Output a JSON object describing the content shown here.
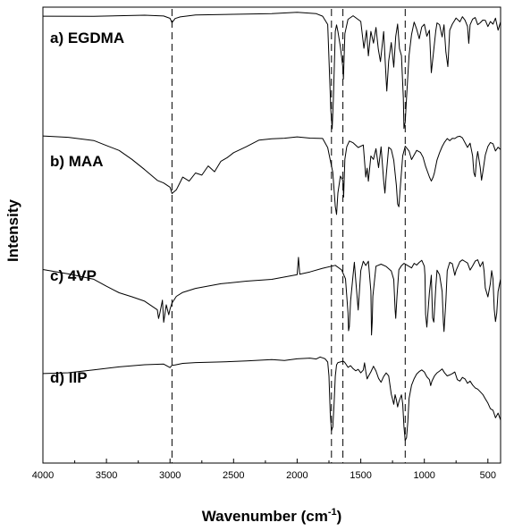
{
  "chart_data": {
    "type": "line",
    "title": "",
    "xlabel": "Wavenumber (cm",
    "xlabel_sup": "-1",
    "xlabel_close": ")",
    "ylabel": "Intensity",
    "xlim": [
      4000,
      400
    ],
    "x_reversed": true,
    "x_ticks": [
      "4000",
      "3500",
      "3000",
      "2500",
      "2000",
      "1500",
      "1000",
      "500"
    ],
    "y_ticks_shown": false,
    "grid": false,
    "legend": "none",
    "reference_lines": [
      2985,
      1730,
      1640,
      1150
    ],
    "series": [
      {
        "name": "a) EGDMA",
        "x": [
          4000,
          3600,
          3200,
          3050,
          3000,
          2985,
          2960,
          2920,
          2800,
          2500,
          2200,
          2000,
          1850,
          1800,
          1760,
          1735,
          1725,
          1715,
          1700,
          1690,
          1680,
          1660,
          1640,
          1636,
          1625,
          1600,
          1560,
          1500,
          1475,
          1455,
          1440,
          1420,
          1400,
          1380,
          1362,
          1345,
          1320,
          1300,
          1295,
          1280,
          1260,
          1240,
          1225,
          1210,
          1195,
          1180,
          1165,
          1160,
          1150,
          1140,
          1120,
          1100,
          1080,
          1060,
          1040,
          1020,
          1000,
          980,
          960,
          945,
          930,
          910,
          900,
          880,
          860,
          845,
          830,
          815,
          800,
          780,
          750,
          720,
          700,
          680,
          660,
          650,
          640,
          620,
          600,
          580,
          560,
          540,
          520,
          500,
          480,
          460,
          440,
          420,
          400
        ],
        "values": [
          0.97,
          0.975,
          0.978,
          0.975,
          0.955,
          0.92,
          0.955,
          0.965,
          0.975,
          0.982,
          0.99,
          1.0,
          0.985,
          0.97,
          0.9,
          0.2,
          0.05,
          0.3,
          0.85,
          0.9,
          0.85,
          0.72,
          0.55,
          0.45,
          0.82,
          0.94,
          0.97,
          0.92,
          0.7,
          0.85,
          0.65,
          0.85,
          0.75,
          0.88,
          0.7,
          0.6,
          0.85,
          0.45,
          0.35,
          0.6,
          0.75,
          0.55,
          0.8,
          0.9,
          0.7,
          0.65,
          0.3,
          0.05,
          0.1,
          0.3,
          0.65,
          0.82,
          0.92,
          0.86,
          0.78,
          0.88,
          0.9,
          0.8,
          0.85,
          0.5,
          0.65,
          0.85,
          0.92,
          0.9,
          0.8,
          0.9,
          0.68,
          0.55,
          0.85,
          0.9,
          0.95,
          0.92,
          0.96,
          0.93,
          0.88,
          0.75,
          0.9,
          0.95,
          0.96,
          0.9,
          0.92,
          0.94,
          0.93,
          0.88,
          0.92,
          0.9,
          0.95,
          0.85,
          0.92
        ]
      },
      {
        "name": "b) MAA",
        "x": [
          4000,
          3800,
          3600,
          3500,
          3400,
          3300,
          3200,
          3100,
          3050,
          3000,
          2985,
          2950,
          2900,
          2850,
          2800,
          2750,
          2700,
          2650,
          2600,
          2550,
          2500,
          2400,
          2300,
          2200,
          2100,
          2000,
          1900,
          1800,
          1760,
          1720,
          1700,
          1690,
          1680,
          1660,
          1640,
          1635,
          1625,
          1610,
          1590,
          1560,
          1520,
          1480,
          1460,
          1450,
          1440,
          1420,
          1400,
          1380,
          1360,
          1340,
          1320,
          1310,
          1300,
          1280,
          1260,
          1240,
          1220,
          1210,
          1200,
          1190,
          1170,
          1150,
          1120,
          1100,
          1060,
          1030,
          1010,
          990,
          960,
          945,
          930,
          920,
          900,
          880,
          860,
          840,
          820,
          800,
          780,
          760,
          740,
          720,
          700,
          660,
          640,
          620,
          610,
          600,
          590,
          580,
          560,
          550,
          540,
          520,
          500,
          480,
          460,
          440,
          420,
          400
        ],
        "values": [
          0.98,
          0.96,
          0.92,
          0.86,
          0.8,
          0.7,
          0.58,
          0.45,
          0.42,
          0.38,
          0.3,
          0.35,
          0.5,
          0.45,
          0.55,
          0.52,
          0.62,
          0.55,
          0.68,
          0.72,
          0.78,
          0.85,
          0.92,
          0.95,
          0.96,
          0.97,
          0.96,
          0.95,
          0.85,
          0.55,
          0.15,
          0.05,
          0.3,
          0.5,
          0.45,
          0.25,
          0.7,
          0.85,
          0.92,
          0.9,
          0.85,
          0.88,
          0.5,
          0.6,
          0.45,
          0.75,
          0.7,
          0.82,
          0.6,
          0.85,
          0.45,
          0.3,
          0.5,
          0.85,
          0.82,
          0.7,
          0.4,
          0.18,
          0.15,
          0.35,
          0.75,
          0.85,
          0.8,
          0.7,
          0.8,
          0.78,
          0.72,
          0.62,
          0.5,
          0.45,
          0.5,
          0.55,
          0.7,
          0.78,
          0.86,
          0.9,
          0.94,
          0.92,
          0.95,
          0.94,
          0.96,
          0.97,
          0.95,
          0.85,
          0.9,
          0.75,
          0.55,
          0.5,
          0.7,
          0.8,
          0.6,
          0.45,
          0.55,
          0.75,
          0.85,
          0.9,
          0.88,
          0.8,
          0.85,
          0.82
        ]
      },
      {
        "name": "c) 4VP",
        "x": [
          4000,
          3800,
          3600,
          3500,
          3400,
          3300,
          3200,
          3100,
          3090,
          3080,
          3060,
          3050,
          3030,
          3010,
          3000,
          2985,
          2950,
          2900,
          2800,
          2600,
          2400,
          2200,
          2000,
          1990,
          1980,
          1900,
          1800,
          1700,
          1650,
          1620,
          1600,
          1596,
          1590,
          1580,
          1560,
          1550,
          1540,
          1520,
          1500,
          1480,
          1460,
          1440,
          1420,
          1415,
          1410,
          1405,
          1380,
          1340,
          1300,
          1260,
          1240,
          1230,
          1225,
          1215,
          1200,
          1180,
          1160,
          1140,
          1100,
          1080,
          1060,
          1040,
          1020,
          1000,
          995,
          990,
          980,
          960,
          945,
          935,
          925,
          910,
          900,
          880,
          860,
          850,
          845,
          830,
          820,
          800,
          780,
          760,
          750,
          720,
          700,
          680,
          660,
          640,
          620,
          600,
          580,
          560,
          540,
          530,
          520,
          500,
          480,
          470,
          460,
          450,
          440,
          430,
          420,
          400
        ],
        "values": [
          0.8,
          0.75,
          0.7,
          0.62,
          0.55,
          0.5,
          0.45,
          0.35,
          0.25,
          0.3,
          0.45,
          0.2,
          0.4,
          0.28,
          0.35,
          0.42,
          0.5,
          0.55,
          0.6,
          0.65,
          0.68,
          0.7,
          0.75,
          0.95,
          0.75,
          0.78,
          0.82,
          0.85,
          0.8,
          0.7,
          0.3,
          0.1,
          0.15,
          0.45,
          0.75,
          0.9,
          0.7,
          0.35,
          0.8,
          0.9,
          0.85,
          0.9,
          0.55,
          0.05,
          0.2,
          0.5,
          0.85,
          0.88,
          0.85,
          0.8,
          0.7,
          0.35,
          0.25,
          0.5,
          0.8,
          0.85,
          0.88,
          0.86,
          0.82,
          0.88,
          0.86,
          0.9,
          0.92,
          0.85,
          0.75,
          0.3,
          0.15,
          0.55,
          0.75,
          0.25,
          0.2,
          0.6,
          0.8,
          0.75,
          0.55,
          0.2,
          0.1,
          0.45,
          0.8,
          0.9,
          0.88,
          0.75,
          0.8,
          0.9,
          0.92,
          0.9,
          0.88,
          0.8,
          0.85,
          0.9,
          0.92,
          0.85,
          0.9,
          0.8,
          0.6,
          0.5,
          0.65,
          0.8,
          0.7,
          0.35,
          0.2,
          0.3,
          0.55,
          0.7
        ]
      },
      {
        "name": "d) IIP",
        "x": [
          4000,
          3800,
          3600,
          3400,
          3200,
          3050,
          3000,
          2985,
          2960,
          2900,
          2800,
          2600,
          2400,
          2200,
          2100,
          2000,
          1900,
          1850,
          1820,
          1800,
          1780,
          1760,
          1750,
          1740,
          1730,
          1720,
          1710,
          1700,
          1690,
          1680,
          1660,
          1640,
          1630,
          1620,
          1600,
          1580,
          1560,
          1540,
          1520,
          1500,
          1480,
          1470,
          1460,
          1450,
          1440,
          1420,
          1400,
          1380,
          1360,
          1340,
          1320,
          1300,
          1280,
          1260,
          1250,
          1240,
          1230,
          1220,
          1210,
          1200,
          1180,
          1170,
          1160,
          1150,
          1140,
          1130,
          1120,
          1100,
          1080,
          1060,
          1040,
          1020,
          1000,
          980,
          960,
          950,
          940,
          920,
          900,
          880,
          860,
          840,
          820,
          800,
          780,
          760,
          740,
          720,
          700,
          680,
          660,
          640,
          620,
          600,
          580,
          560,
          540,
          520,
          500,
          480,
          460,
          440,
          420,
          400
        ],
        "values": [
          0.78,
          0.79,
          0.82,
          0.85,
          0.87,
          0.88,
          0.84,
          0.86,
          0.87,
          0.88,
          0.9,
          0.91,
          0.92,
          0.93,
          0.92,
          0.94,
          0.95,
          0.94,
          0.95,
          0.94,
          0.93,
          0.9,
          0.75,
          0.35,
          0.15,
          0.2,
          0.45,
          0.75,
          0.88,
          0.9,
          0.91,
          0.92,
          0.9,
          0.88,
          0.84,
          0.86,
          0.83,
          0.8,
          0.82,
          0.78,
          0.82,
          0.9,
          0.8,
          0.72,
          0.75,
          0.8,
          0.86,
          0.8,
          0.72,
          0.68,
          0.74,
          0.78,
          0.75,
          0.55,
          0.5,
          0.45,
          0.55,
          0.5,
          0.42,
          0.48,
          0.55,
          0.45,
          0.2,
          0.05,
          0.08,
          0.25,
          0.5,
          0.65,
          0.72,
          0.78,
          0.8,
          0.82,
          0.8,
          0.75,
          0.72,
          0.65,
          0.7,
          0.75,
          0.78,
          0.8,
          0.82,
          0.78,
          0.75,
          0.76,
          0.78,
          0.8,
          0.72,
          0.7,
          0.74,
          0.72,
          0.68,
          0.7,
          0.65,
          0.62,
          0.6,
          0.58,
          0.55,
          0.5,
          0.45,
          0.4,
          0.38,
          0.3,
          0.35,
          0.28
        ]
      }
    ]
  }
}
